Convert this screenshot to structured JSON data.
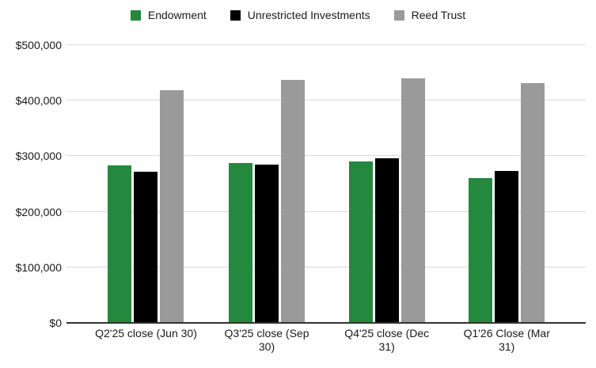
{
  "chart_data": {
    "type": "bar",
    "title": "",
    "categories": [
      "Q2'25 close (Jun 30)",
      "Q3'25 close (Sep 30)",
      "Q4'25 close (Dec 31)",
      "Q1'26 Close (Mar 31)"
    ],
    "category_label_lines": [
      [
        "Q2'25 close (Jun 30)"
      ],
      [
        "Q3'25 close (Sep",
        "30)"
      ],
      [
        "Q4'25 close (Dec",
        "31)"
      ],
      [
        "Q1'26 Close (Mar",
        "31)"
      ]
    ],
    "series": [
      {
        "name": "Endowment",
        "color": "#24883f",
        "values": [
          284000,
          288000,
          290000,
          261000
        ]
      },
      {
        "name": "Unrestricted Investments",
        "color": "#000000",
        "values": [
          272000,
          285000,
          296000,
          273000
        ]
      },
      {
        "name": "Reed Trust",
        "color": "#9a9a9a",
        "values": [
          419000,
          437000,
          440000,
          432000
        ]
      }
    ],
    "y_axis": {
      "min": 0,
      "max": 500000,
      "tick_interval": 100000,
      "tick_labels_bottom_to_top": [
        "$0",
        "$100,000",
        "$200,000",
        "$300,000",
        "$400,000",
        "$500,000"
      ]
    },
    "legend": {
      "position": "top",
      "entries": [
        "Endowment",
        "Unrestricted Investments",
        "Reed Trust"
      ]
    },
    "grid": true,
    "xlabel": "",
    "ylabel": "",
    "colors": {
      "grid_line": "#d9d9d9",
      "axis_line": "#333333",
      "text": "#1a1a1a",
      "background": "#ffffff"
    }
  }
}
